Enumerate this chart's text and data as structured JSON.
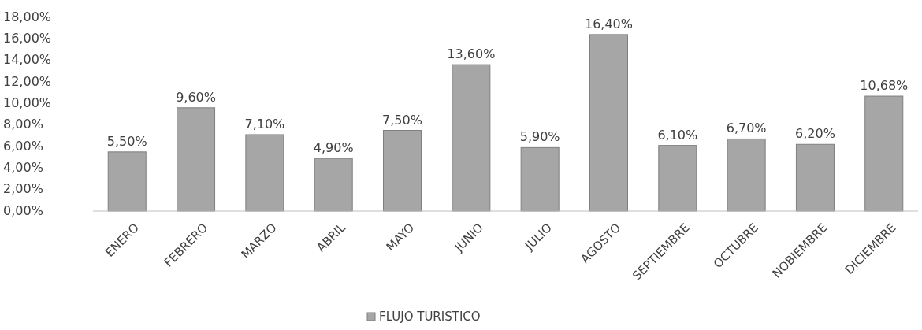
{
  "chart_data": {
    "type": "bar",
    "categories": [
      "ENERO",
      "FEBRERO",
      "MARZO",
      "ABRIL",
      "MAYO",
      "JUNIO",
      "JULIO",
      "AGOSTO",
      "SEPTIEMBRE",
      "OCTUBRE",
      "NOBIEMBRE",
      "DICIEMBRE"
    ],
    "series": [
      {
        "name": "FLUJO TURISTICO",
        "color": "#a6a6a6",
        "values": [
          5.5,
          9.6,
          7.1,
          4.9,
          7.5,
          13.6,
          5.9,
          16.4,
          6.1,
          6.7,
          6.2,
          10.68
        ],
        "value_labels": [
          "5,50%",
          "9,60%",
          "7,10%",
          "4,90%",
          "7,50%",
          "13,60%",
          "5,90%",
          "16,40%",
          "6,10%",
          "6,70%",
          "6,20%",
          "10,68%"
        ]
      }
    ],
    "ylim": [
      0,
      18
    ],
    "yticks": [
      {
        "value": 0,
        "label": "0,00%"
      },
      {
        "value": 2,
        "label": "2,00%"
      },
      {
        "value": 4,
        "label": "4,00%"
      },
      {
        "value": 6,
        "label": "6,00%"
      },
      {
        "value": 8,
        "label": "8,00%"
      },
      {
        "value": 10,
        "label": "10,00%"
      },
      {
        "value": 12,
        "label": "12,00%"
      },
      {
        "value": 14,
        "label": "14,00%"
      },
      {
        "value": 16,
        "label": "16,00%"
      },
      {
        "value": 18,
        "label": "18,00%"
      }
    ],
    "grid": false,
    "legend": "bottom"
  }
}
